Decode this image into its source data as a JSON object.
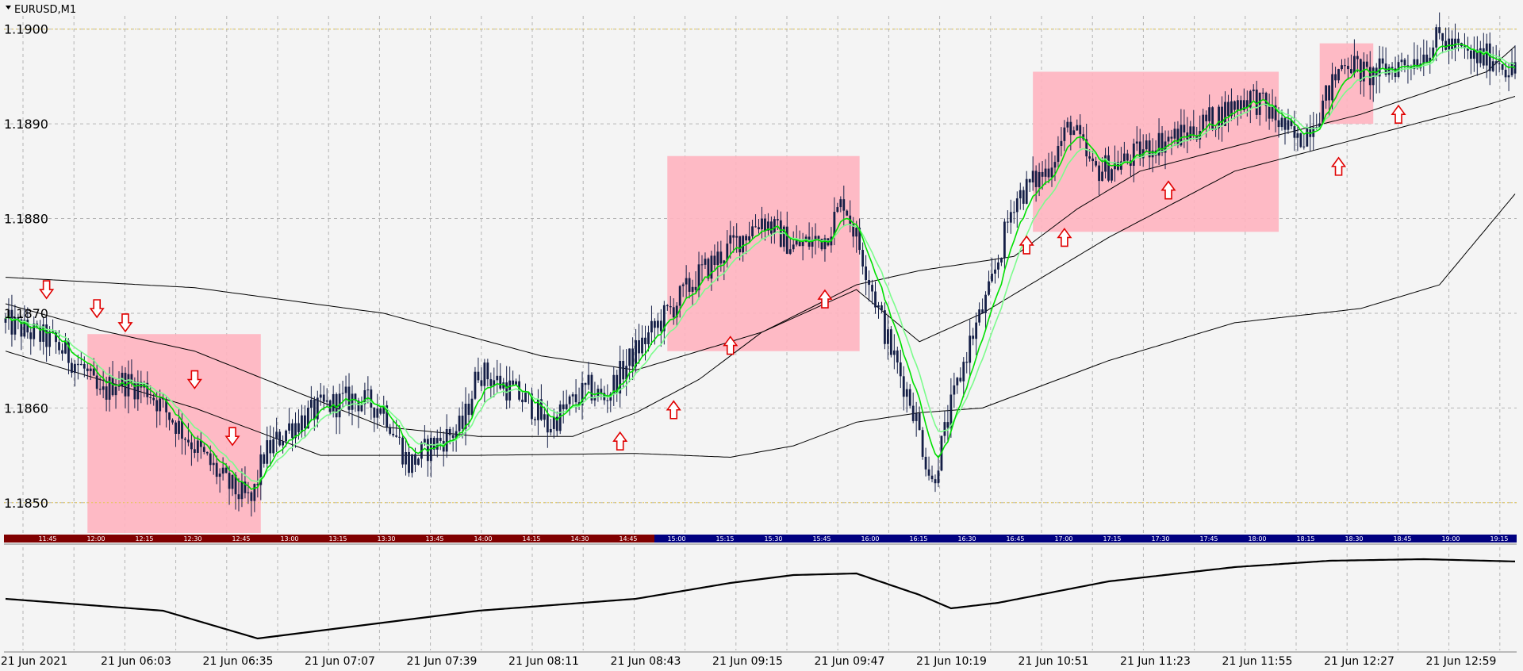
{
  "window": {
    "symbol_title": "EURUSD,M1"
  },
  "colors": {
    "background": "#f4f4f4",
    "grid": "#b4b4b4",
    "candle": "#141e46",
    "ema_fast": "#00e000",
    "ema_slow": "#7cfc8c",
    "band_line": "#000000",
    "zone_fill": "#ffb4c0",
    "arrow": "#e00000",
    "session_bar_red": "#800000",
    "session_bar_blue": "#000080",
    "level_dotted": "#e6c850"
  },
  "chart_data": {
    "type": "candlestick",
    "symbol": "EURUSD",
    "timeframe": "M1",
    "y_ticks": [
      "1.1900",
      "1.1890",
      "1.1880",
      "1.1870",
      "1.1860",
      "1.1850"
    ],
    "y_tick_values": [
      1.19,
      1.189,
      1.188,
      1.187,
      1.186,
      1.185
    ],
    "ylim": [
      1.18468,
      1.19014
    ],
    "x_tick_labels": [
      "21 Jun 2021",
      "21 Jun 06:03",
      "21 Jun 06:35",
      "21 Jun 07:07",
      "21 Jun 07:39",
      "21 Jun 08:11",
      "21 Jun 08:43",
      "21 Jun 09:15",
      "21 Jun 09:47",
      "21 Jun 10:19",
      "21 Jun 10:51",
      "21 Jun 11:23",
      "21 Jun 11:55",
      "21 Jun 12:27",
      "21 Jun 12:59"
    ],
    "session_times": [
      "11:45",
      "12:00",
      "12:15",
      "12:30",
      "12:45",
      "13:00",
      "13:15",
      "13:30",
      "13:45",
      "14:00",
      "14:15",
      "14:30",
      "14:45",
      "15:00",
      "15:15",
      "15:30",
      "15:45",
      "16:00",
      "16:15",
      "16:30",
      "16:45",
      "17:00",
      "17:15",
      "17:30",
      "17:45",
      "18:00",
      "18:15",
      "18:30",
      "18:45",
      "19:00",
      "19:15"
    ],
    "session_blue_from": "15:00",
    "n_bars": 480,
    "price_path": [
      [
        0,
        1.1869
      ],
      [
        15,
        1.1867
      ],
      [
        25,
        1.1864
      ],
      [
        30,
        1.1861
      ],
      [
        35,
        1.1863
      ],
      [
        45,
        1.1862
      ],
      [
        55,
        1.1858
      ],
      [
        70,
        1.1852
      ],
      [
        78,
        1.185
      ],
      [
        82,
        1.1855
      ],
      [
        90,
        1.1858
      ],
      [
        100,
        1.186
      ],
      [
        110,
        1.1861
      ],
      [
        120,
        1.186
      ],
      [
        128,
        1.1854
      ],
      [
        135,
        1.1856
      ],
      [
        145,
        1.1858
      ],
      [
        150,
        1.1864
      ],
      [
        155,
        1.1863
      ],
      [
        160,
        1.1862
      ],
      [
        168,
        1.186
      ],
      [
        172,
        1.1858
      ],
      [
        178,
        1.186
      ],
      [
        185,
        1.1862
      ],
      [
        190,
        1.1861
      ],
      [
        200,
        1.1866
      ],
      [
        210,
        1.187
      ],
      [
        220,
        1.1874
      ],
      [
        230,
        1.1877
      ],
      [
        240,
        1.188
      ],
      [
        250,
        1.1877
      ],
      [
        260,
        1.1878
      ],
      [
        266,
        1.1882
      ],
      [
        272,
        1.1876
      ],
      [
        280,
        1.1867
      ],
      [
        288,
        1.186
      ],
      [
        294,
        1.1852
      ],
      [
        300,
        1.186
      ],
      [
        306,
        1.1867
      ],
      [
        312,
        1.1872
      ],
      [
        320,
        1.1882
      ],
      [
        330,
        1.1885
      ],
      [
        338,
        1.189
      ],
      [
        345,
        1.1885
      ],
      [
        355,
        1.1886
      ],
      [
        365,
        1.1888
      ],
      [
        375,
        1.1889
      ],
      [
        385,
        1.1891
      ],
      [
        395,
        1.1893
      ],
      [
        402,
        1.1891
      ],
      [
        410,
        1.1888
      ],
      [
        418,
        1.1892
      ],
      [
        425,
        1.1897
      ],
      [
        432,
        1.1895
      ],
      [
        440,
        1.1896
      ],
      [
        448,
        1.1897
      ],
      [
        455,
        1.1899
      ],
      [
        465,
        1.1897
      ],
      [
        473,
        1.1897
      ],
      [
        480,
        1.1895
      ]
    ],
    "ema_fast_period": 8,
    "ema_slow_period": 14,
    "bands": [
      {
        "name": "band_1",
        "values": [
          [
            0,
            1.18738
          ],
          [
            60,
            1.18727
          ],
          [
            120,
            1.187
          ],
          [
            170,
            1.18655
          ],
          [
            200,
            1.1864
          ],
          [
            240,
            1.1868
          ],
          [
            270,
            1.1873
          ],
          [
            290,
            1.18745
          ],
          [
            320,
            1.1876
          ],
          [
            340,
            1.1881
          ],
          [
            360,
            1.1885
          ],
          [
            400,
            1.18885
          ],
          [
            430,
            1.1891
          ],
          [
            470,
            1.18955
          ],
          [
            480,
            1.18985
          ]
        ]
      },
      {
        "name": "band_2",
        "values": [
          [
            0,
            1.1871
          ],
          [
            30,
            1.18682
          ],
          [
            60,
            1.1866
          ],
          [
            90,
            1.1862
          ],
          [
            120,
            1.1858
          ],
          [
            150,
            1.1857
          ],
          [
            180,
            1.1857
          ],
          [
            200,
            1.18595
          ],
          [
            220,
            1.1863
          ],
          [
            240,
            1.1868
          ],
          [
            270,
            1.18725
          ],
          [
            290,
            1.1867
          ],
          [
            310,
            1.187
          ],
          [
            350,
            1.1878
          ],
          [
            390,
            1.1885
          ],
          [
            430,
            1.18885
          ],
          [
            470,
            1.1892
          ],
          [
            480,
            1.1893
          ]
        ]
      },
      {
        "name": "band_3",
        "values": [
          [
            0,
            1.1866
          ],
          [
            60,
            1.186
          ],
          [
            100,
            1.1855
          ],
          [
            150,
            1.1855
          ],
          [
            200,
            1.18552
          ],
          [
            230,
            1.18548
          ],
          [
            250,
            1.1856
          ],
          [
            270,
            1.18585
          ],
          [
            290,
            1.18595
          ],
          [
            310,
            1.186
          ],
          [
            350,
            1.1865
          ],
          [
            390,
            1.1869
          ],
          [
            430,
            1.18705
          ],
          [
            455,
            1.1873
          ],
          [
            470,
            1.1879
          ],
          [
            480,
            1.1883
          ]
        ]
      }
    ],
    "zones": [
      {
        "x0": 26,
        "x1": 81,
        "y_top": 1.18678,
        "y_bottom": 1.18468
      },
      {
        "x0": 210,
        "x1": 271,
        "y_top": 1.18866,
        "y_bottom": 1.1866
      },
      {
        "x0": 326,
        "x1": 404,
        "y_top": 1.18955,
        "y_bottom": 1.18786
      },
      {
        "x0": 417,
        "x1": 434,
        "y_top": 1.18985,
        "y_bottom": 1.189
      }
    ],
    "down_arrows": [
      [
        13,
        1.18725
      ],
      [
        29,
        1.18705
      ],
      [
        38,
        1.1869
      ],
      [
        60,
        1.1863
      ],
      [
        72,
        1.1857
      ]
    ],
    "up_arrows": [
      [
        195,
        1.18565
      ],
      [
        212,
        1.18598
      ],
      [
        230,
        1.18666
      ],
      [
        260,
        1.18715
      ],
      [
        324,
        1.18772
      ],
      [
        336,
        1.1878
      ],
      [
        369,
        1.1883
      ],
      [
        423,
        1.18855
      ],
      [
        442,
        1.1891
      ]
    ],
    "oscillator": {
      "path": [
        [
          0,
          0.3
        ],
        [
          50,
          0.45
        ],
        [
          80,
          0.8
        ],
        [
          110,
          0.65
        ],
        [
          150,
          0.45
        ],
        [
          200,
          0.3
        ],
        [
          230,
          0.1
        ],
        [
          250,
          0.0
        ],
        [
          270,
          -0.02
        ],
        [
          290,
          0.25
        ],
        [
          300,
          0.42
        ],
        [
          315,
          0.35
        ],
        [
          350,
          0.08
        ],
        [
          390,
          -0.1
        ],
        [
          420,
          -0.18
        ],
        [
          450,
          -0.2
        ],
        [
          480,
          -0.17
        ]
      ]
    }
  }
}
